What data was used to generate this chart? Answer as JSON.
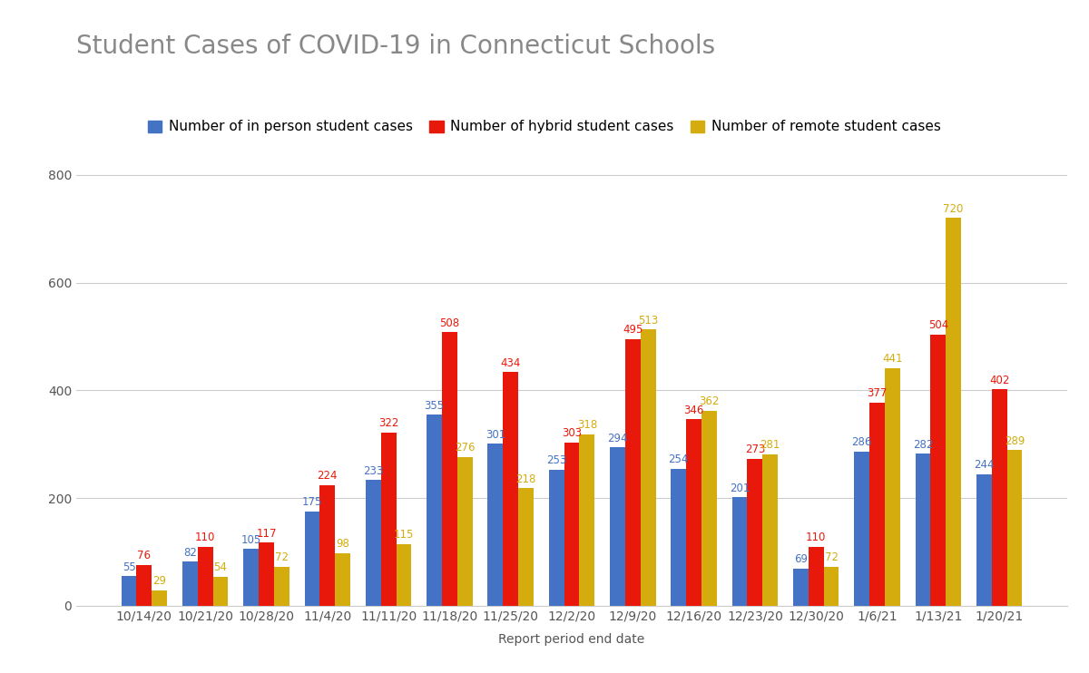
{
  "title": "Student Cases of COVID-19 in Connecticut Schools",
  "xlabel": "Report period end date",
  "categories": [
    "10/14/20",
    "10/21/20",
    "10/28/20",
    "11/4/20",
    "11/11/20",
    "11/18/20",
    "11/25/20",
    "12/2/20",
    "12/9/20",
    "12/16/20",
    "12/23/20",
    "12/30/20",
    "1/6/21",
    "1/13/21",
    "1/20/21"
  ],
  "in_person": [
    55,
    82,
    105,
    175,
    233,
    355,
    301,
    253,
    294,
    254,
    201,
    69,
    286,
    282,
    244
  ],
  "hybrid": [
    76,
    110,
    117,
    224,
    322,
    508,
    434,
    303,
    495,
    346,
    273,
    110,
    377,
    504,
    402
  ],
  "remote": [
    29,
    54,
    72,
    98,
    115,
    276,
    218,
    318,
    513,
    362,
    281,
    72,
    441,
    720,
    289
  ],
  "in_person_color": "#4472C4",
  "hybrid_color": "#E8190A",
  "remote_color": "#D4AC0D",
  "background_color": "#FFFFFF",
  "grid_color": "#CCCCCC",
  "title_color": "#888888",
  "tick_color": "#555555",
  "label_fontsize": 10,
  "title_fontsize": 20,
  "legend_fontsize": 11,
  "annot_fontsize": 8.5,
  "ylim": [
    0,
    850
  ],
  "yticks": [
    0,
    200,
    400,
    600,
    800
  ],
  "legend_labels": [
    "Number of in person student cases",
    "Number of hybrid student cases",
    "Number of remote student cases"
  ]
}
